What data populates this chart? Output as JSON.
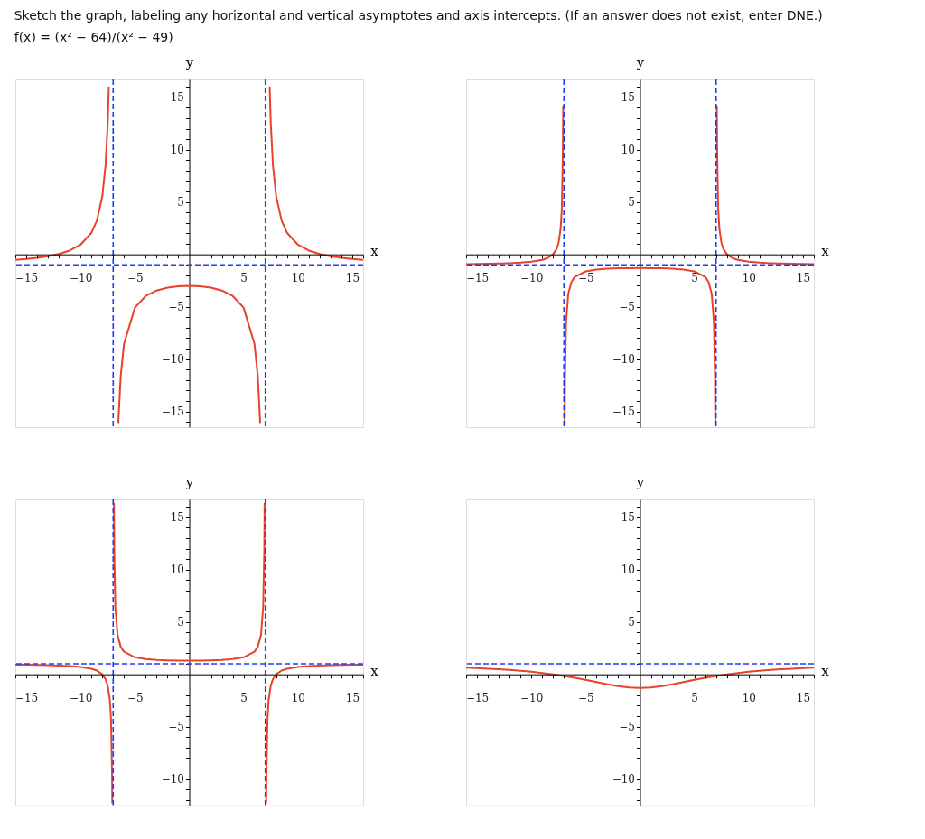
{
  "chart_data": [
    {
      "type": "line",
      "title": "Sketch the graph, labeling any horizontal and vertical asymptotes and axis intercepts. (If an answer does not exist, enter DNE.)",
      "subtitle": "f(x) = (x² − 64)/(x² − 49)",
      "xlabel": "x",
      "ylabel": "y",
      "series": [
        {
          "color": "#e8412c",
          "x": [
            -16,
            -15,
            -14,
            -13,
            -12,
            -11,
            -10,
            -9,
            -8.5,
            -8,
            -7.7,
            -7.5,
            -7.4,
            -7,
            -6.52,
            -6.5,
            -6.3,
            -6,
            -5,
            -4,
            -3,
            -2,
            -1,
            0,
            1,
            2,
            3,
            4,
            5,
            6,
            6.3,
            6.5,
            6.52,
            7,
            7.4,
            7.5,
            7.7,
            8,
            8.5,
            9,
            10,
            11,
            12,
            13,
            14,
            15,
            16
          ],
          "values": [
            -0.527,
            -0.443,
            -0.333,
            -0.183,
            0.032,
            0.361,
            0.922,
            2.063,
            3.215,
            5.533,
            8.524,
            12.517,
            16.01,
            null,
            -16.1,
            -15.519,
            -11.526,
            -8.538,
            -5.083,
            -3.97,
            -3.45,
            -3.178,
            -3.042,
            -3,
            -3.042,
            -3.178,
            -3.45,
            -3.97,
            -5.083,
            -8.538,
            -11.526,
            -15.519,
            -16.1,
            null,
            16.01,
            12.517,
            8.524,
            5.533,
            3.215,
            2.063,
            0.922,
            0.361,
            0.032,
            -0.183,
            -0.333,
            -0.443,
            -0.527
          ]
        }
      ],
      "xlim": [
        -16,
        16
      ],
      "ylim": [
        -16.5,
        16.7
      ],
      "xticks": [
        {
          "value": -16,
          "label": null
        },
        -15,
        {
          "value": -14,
          "label": null
        },
        {
          "value": -13,
          "label": null
        },
        {
          "value": -12,
          "label": null
        },
        {
          "value": -11,
          "label": null
        },
        -10,
        {
          "value": -9,
          "label": null
        },
        {
          "value": -8,
          "label": null
        },
        {
          "value": -7,
          "label": null
        },
        {
          "value": -6,
          "label": null
        },
        -5,
        {
          "value": -4,
          "label": null
        },
        {
          "value": -3,
          "label": null
        },
        {
          "value": -2,
          "label": null
        },
        {
          "value": -1,
          "label": null
        },
        {
          "value": 1,
          "label": null
        },
        {
          "value": 2,
          "label": null
        },
        {
          "value": 3,
          "label": null
        },
        {
          "value": 4,
          "label": null
        },
        5,
        {
          "value": 6,
          "label": null
        },
        {
          "value": 7,
          "label": null
        },
        {
          "value": 8,
          "label": null
        },
        {
          "value": 9,
          "label": null
        },
        10,
        {
          "value": 11,
          "label": null
        },
        {
          "value": 12,
          "label": null
        },
        {
          "value": 13,
          "label": null
        },
        {
          "value": 14,
          "label": null
        },
        15,
        {
          "value": 16,
          "label": null
        }
      ],
      "yticks": [
        {
          "value": -16,
          "label": null
        },
        -15,
        {
          "value": -14,
          "label": null
        },
        {
          "value": -13,
          "label": null
        },
        {
          "value": -12,
          "label": null
        },
        {
          "value": -11,
          "label": null
        },
        -10,
        {
          "value": -9,
          "label": null
        },
        {
          "value": -8,
          "label": null
        },
        {
          "value": -7,
          "label": null
        },
        {
          "value": -6,
          "label": null
        },
        -5,
        {
          "value": -4,
          "label": null
        },
        {
          "value": -3,
          "label": null
        },
        {
          "value": -2,
          "label": null
        },
        {
          "value": -1,
          "label": null
        },
        {
          "value": 1,
          "label": null
        },
        {
          "value": 2,
          "label": null
        },
        {
          "value": 3,
          "label": null
        },
        {
          "value": 4,
          "label": null
        },
        5,
        {
          "value": 6,
          "label": null
        },
        {
          "value": 7,
          "label": null
        },
        {
          "value": 8,
          "label": null
        },
        {
          "value": 9,
          "label": null
        },
        10,
        {
          "value": 11,
          "label": null
        },
        {
          "value": 12,
          "label": null
        },
        {
          "value": 13,
          "label": null
        },
        {
          "value": 14,
          "label": null
        },
        15,
        {
          "value": 16,
          "label": null
        }
      ],
      "ref_lines": [
        {
          "axis": "x",
          "value": -7,
          "color": "#1f3cf0",
          "line_style": "dashed"
        },
        {
          "axis": "x",
          "value": 7,
          "color": "#1f3cf0",
          "line_style": "dashed"
        },
        {
          "axis": "y",
          "value": -1,
          "color": "#1f3cf0",
          "line_style": "dashed"
        }
      ]
    },
    {
      "type": "line",
      "xlabel": "x",
      "ylabel": "y",
      "series": [
        {
          "color": "#e8412c",
          "x": [
            -16,
            -15,
            -14,
            -13,
            -12,
            -11,
            -10,
            -9,
            -8.5,
            -8,
            -7.7,
            -7.5,
            -7.3,
            -7.2,
            -7.1,
            -7.07,
            -7,
            -6.93,
            -6.9,
            -6.8,
            -6.6,
            -6.3,
            -6,
            -5,
            -4,
            -3,
            -2,
            -1,
            0,
            1,
            2,
            3,
            4,
            5,
            6,
            6.3,
            6.6,
            6.8,
            6.9,
            6.93,
            7,
            7.07,
            7.1,
            7.2,
            7.3,
            7.5,
            7.7,
            8,
            8.5,
            9,
            10,
            11,
            12,
            13,
            14,
            15,
            16
          ],
          "values": [
            -0.928,
            -0.915,
            -0.898,
            -0.875,
            -0.842,
            -0.792,
            -0.706,
            -0.531,
            -0.355,
            0,
            0.458,
            1.069,
            2.497,
            4.282,
            9.64,
            14.23,
            null,
            -16.38,
            -11.79,
            -6.435,
            -3.757,
            -2.611,
            -2.154,
            -1.625,
            -1.455,
            -1.375,
            -1.333,
            -1.3125,
            -1.306,
            -1.3125,
            -1.333,
            -1.375,
            -1.455,
            -1.625,
            -2.154,
            -2.611,
            -3.757,
            -6.435,
            -11.79,
            -16.38,
            null,
            14.23,
            9.64,
            4.282,
            2.497,
            1.069,
            0.458,
            0,
            -0.355,
            -0.531,
            -0.706,
            -0.792,
            -0.842,
            -0.875,
            -0.898,
            -0.915,
            -0.928
          ]
        }
      ],
      "xlim": [
        -16,
        16
      ],
      "ylim": [
        -16.5,
        16.7
      ],
      "xticks": [
        {
          "value": -16,
          "label": null
        },
        -15,
        {
          "value": -14,
          "label": null
        },
        {
          "value": -13,
          "label": null
        },
        {
          "value": -12,
          "label": null
        },
        {
          "value": -11,
          "label": null
        },
        -10,
        {
          "value": -9,
          "label": null
        },
        {
          "value": -8,
          "label": null
        },
        {
          "value": -7,
          "label": null
        },
        {
          "value": -6,
          "label": null
        },
        -5,
        {
          "value": -4,
          "label": null
        },
        {
          "value": -3,
          "label": null
        },
        {
          "value": -2,
          "label": null
        },
        {
          "value": -1,
          "label": null
        },
        {
          "value": 1,
          "label": null
        },
        {
          "value": 2,
          "label": null
        },
        {
          "value": 3,
          "label": null
        },
        {
          "value": 4,
          "label": null
        },
        5,
        {
          "value": 6,
          "label": null
        },
        {
          "value": 7,
          "label": null
        },
        {
          "value": 8,
          "label": null
        },
        {
          "value": 9,
          "label": null
        },
        10,
        {
          "value": 11,
          "label": null
        },
        {
          "value": 12,
          "label": null
        },
        {
          "value": 13,
          "label": null
        },
        {
          "value": 14,
          "label": null
        },
        15,
        {
          "value": 16,
          "label": null
        }
      ],
      "yticks": [
        {
          "value": -16,
          "label": null
        },
        -15,
        {
          "value": -14,
          "label": null
        },
        {
          "value": -13,
          "label": null
        },
        {
          "value": -12,
          "label": null
        },
        {
          "value": -11,
          "label": null
        },
        -10,
        {
          "value": -9,
          "label": null
        },
        {
          "value": -8,
          "label": null
        },
        {
          "value": -7,
          "label": null
        },
        {
          "value": -6,
          "label": null
        },
        -5,
        {
          "value": -4,
          "label": null
        },
        {
          "value": -3,
          "label": null
        },
        {
          "value": -2,
          "label": null
        },
        {
          "value": -1,
          "label": null
        },
        {
          "value": 1,
          "label": null
        },
        {
          "value": 2,
          "label": null
        },
        {
          "value": 3,
          "label": null
        },
        {
          "value": 4,
          "label": null
        },
        5,
        {
          "value": 6,
          "label": null
        },
        {
          "value": 7,
          "label": null
        },
        {
          "value": 8,
          "label": null
        },
        {
          "value": 9,
          "label": null
        },
        10,
        {
          "value": 11,
          "label": null
        },
        {
          "value": 12,
          "label": null
        },
        {
          "value": 13,
          "label": null
        },
        {
          "value": 14,
          "label": null
        },
        15,
        {
          "value": 16,
          "label": null
        }
      ],
      "ref_lines": [
        {
          "axis": "x",
          "value": -7,
          "color": "#1f3cf0",
          "line_style": "dashed"
        },
        {
          "axis": "x",
          "value": 7,
          "color": "#1f3cf0",
          "line_style": "dashed"
        },
        {
          "axis": "y",
          "value": -1,
          "color": "#1f3cf0",
          "line_style": "dashed"
        }
      ]
    },
    {
      "type": "line",
      "xlabel": "x",
      "ylabel": "y",
      "series": [
        {
          "color": "#e8412c",
          "x": [
            -16,
            -15,
            -14,
            -13,
            -12,
            -11,
            -10,
            -9,
            -8.5,
            -8,
            -7.7,
            -7.5,
            -7.3,
            -7.2,
            -7.1,
            -7.08,
            -7,
            -6.93,
            -6.9,
            -6.8,
            -6.6,
            -6.3,
            -6,
            -5,
            -4,
            -3,
            -2,
            -1,
            0,
            1,
            2,
            3,
            4,
            5,
            6,
            6.3,
            6.6,
            6.8,
            6.9,
            6.93,
            7,
            7.08,
            7.1,
            7.2,
            7.3,
            7.5,
            7.7,
            8,
            8.5,
            9,
            10,
            11,
            12,
            13,
            14,
            15,
            16
          ],
          "values": [
            0.928,
            0.915,
            0.898,
            0.875,
            0.842,
            0.792,
            0.706,
            0.531,
            0.355,
            0,
            -0.458,
            -1.069,
            -2.497,
            -4.282,
            -9.64,
            -12.32,
            null,
            16.38,
            11.79,
            6.435,
            3.757,
            2.611,
            2.154,
            1.625,
            1.455,
            1.375,
            1.333,
            1.3125,
            1.306,
            1.3125,
            1.333,
            1.375,
            1.455,
            1.625,
            2.154,
            2.611,
            3.757,
            6.435,
            11.79,
            16.38,
            null,
            -12.32,
            -9.64,
            -4.282,
            -2.497,
            -1.069,
            -0.458,
            0,
            0.355,
            0.531,
            0.706,
            0.792,
            0.842,
            0.875,
            0.898,
            0.915,
            0.928
          ]
        }
      ],
      "xlim": [
        -16,
        16
      ],
      "ylim": [
        -12.5,
        16.7
      ],
      "xticks": [
        {
          "value": -16,
          "label": null
        },
        -15,
        {
          "value": -14,
          "label": null
        },
        {
          "value": -13,
          "label": null
        },
        {
          "value": -12,
          "label": null
        },
        {
          "value": -11,
          "label": null
        },
        -10,
        {
          "value": -9,
          "label": null
        },
        {
          "value": -8,
          "label": null
        },
        {
          "value": -7,
          "label": null
        },
        {
          "value": -6,
          "label": null
        },
        -5,
        {
          "value": -4,
          "label": null
        },
        {
          "value": -3,
          "label": null
        },
        {
          "value": -2,
          "label": null
        },
        {
          "value": -1,
          "label": null
        },
        {
          "value": 1,
          "label": null
        },
        {
          "value": 2,
          "label": null
        },
        {
          "value": 3,
          "label": null
        },
        {
          "value": 4,
          "label": null
        },
        5,
        {
          "value": 6,
          "label": null
        },
        {
          "value": 7,
          "label": null
        },
        {
          "value": 8,
          "label": null
        },
        {
          "value": 9,
          "label": null
        },
        10,
        {
          "value": 11,
          "label": null
        },
        {
          "value": 12,
          "label": null
        },
        {
          "value": 13,
          "label": null
        },
        {
          "value": 14,
          "label": null
        },
        15,
        {
          "value": 16,
          "label": null
        }
      ],
      "yticks": [
        {
          "value": -12,
          "label": null
        },
        {
          "value": -11,
          "label": null
        },
        -10,
        {
          "value": -9,
          "label": null
        },
        {
          "value": -8,
          "label": null
        },
        {
          "value": -7,
          "label": null
        },
        {
          "value": -6,
          "label": null
        },
        -5,
        {
          "value": -4,
          "label": null
        },
        {
          "value": -3,
          "label": null
        },
        {
          "value": -2,
          "label": null
        },
        {
          "value": -1,
          "label": null
        },
        {
          "value": 1,
          "label": null
        },
        {
          "value": 2,
          "label": null
        },
        {
          "value": 3,
          "label": null
        },
        {
          "value": 4,
          "label": null
        },
        5,
        {
          "value": 6,
          "label": null
        },
        {
          "value": 7,
          "label": null
        },
        {
          "value": 8,
          "label": null
        },
        {
          "value": 9,
          "label": null
        },
        10,
        {
          "value": 11,
          "label": null
        },
        {
          "value": 12,
          "label": null
        },
        {
          "value": 13,
          "label": null
        },
        {
          "value": 14,
          "label": null
        },
        15,
        {
          "value": 16,
          "label": null
        }
      ],
      "ref_lines": [
        {
          "axis": "x",
          "value": -7,
          "color": "#1f3cf0",
          "line_style": "dashed"
        },
        {
          "axis": "x",
          "value": 7,
          "color": "#1f3cf0",
          "line_style": "dashed"
        },
        {
          "axis": "y",
          "value": 1,
          "color": "#1f3cf0",
          "line_style": "dashed"
        }
      ]
    },
    {
      "type": "line",
      "xlabel": "x",
      "ylabel": "y",
      "series": [
        {
          "color": "#e8412c",
          "x": [
            -16,
            -15,
            -14,
            -13,
            -12,
            -11,
            -10,
            -9,
            -8,
            -7,
            -6,
            -5,
            -4,
            -3,
            -2,
            -1,
            0,
            1,
            2,
            3,
            4,
            5,
            6,
            7,
            8,
            9,
            10,
            11,
            12,
            13,
            14,
            15,
            16
          ],
          "values": [
            0.63,
            0.588,
            0.539,
            0.482,
            0.415,
            0.335,
            0.242,
            0.131,
            0,
            -0.153,
            -0.329,
            -0.527,
            -0.738,
            -0.948,
            -1.132,
            -1.26,
            -1.306,
            -1.26,
            -1.132,
            -0.948,
            -0.738,
            -0.527,
            -0.329,
            -0.153,
            0,
            0.131,
            0.242,
            0.335,
            0.415,
            0.482,
            0.539,
            0.588,
            0.63
          ]
        }
      ],
      "xlim": [
        -16,
        16
      ],
      "ylim": [
        -12.5,
        16.7
      ],
      "xticks": [
        {
          "value": -16,
          "label": null
        },
        -15,
        {
          "value": -14,
          "label": null
        },
        {
          "value": -13,
          "label": null
        },
        {
          "value": -12,
          "label": null
        },
        {
          "value": -11,
          "label": null
        },
        -10,
        {
          "value": -9,
          "label": null
        },
        {
          "value": -8,
          "label": null
        },
        {
          "value": -7,
          "label": null
        },
        {
          "value": -6,
          "label": null
        },
        -5,
        {
          "value": -4,
          "label": null
        },
        {
          "value": -3,
          "label": null
        },
        {
          "value": -2,
          "label": null
        },
        {
          "value": -1,
          "label": null
        },
        {
          "value": 1,
          "label": null
        },
        {
          "value": 2,
          "label": null
        },
        {
          "value": 3,
          "label": null
        },
        {
          "value": 4,
          "label": null
        },
        5,
        {
          "value": 6,
          "label": null
        },
        {
          "value": 7,
          "label": null
        },
        {
          "value": 8,
          "label": null
        },
        {
          "value": 9,
          "label": null
        },
        10,
        {
          "value": 11,
          "label": null
        },
        {
          "value": 12,
          "label": null
        },
        {
          "value": 13,
          "label": null
        },
        {
          "value": 14,
          "label": null
        },
        15,
        {
          "value": 16,
          "label": null
        }
      ],
      "yticks": [
        {
          "value": -12,
          "label": null
        },
        {
          "value": -11,
          "label": null
        },
        -10,
        {
          "value": -9,
          "label": null
        },
        {
          "value": -8,
          "label": null
        },
        {
          "value": -7,
          "label": null
        },
        {
          "value": -6,
          "label": null
        },
        -5,
        {
          "value": -4,
          "label": null
        },
        {
          "value": -3,
          "label": null
        },
        {
          "value": -2,
          "label": null
        },
        {
          "value": -1,
          "label": null
        },
        {
          "value": 1,
          "label": null
        },
        {
          "value": 2,
          "label": null
        },
        {
          "value": 3,
          "label": null
        },
        {
          "value": 4,
          "label": null
        },
        5,
        {
          "value": 6,
          "label": null
        },
        {
          "value": 7,
          "label": null
        },
        {
          "value": 8,
          "label": null
        },
        {
          "value": 9,
          "label": null
        },
        10,
        {
          "value": 11,
          "label": null
        },
        {
          "value": 12,
          "label": null
        },
        {
          "value": 13,
          "label": null
        },
        {
          "value": 14,
          "label": null
        },
        15,
        {
          "value": 16,
          "label": null
        }
      ],
      "ref_lines": [
        {
          "axis": "y",
          "value": 1,
          "color": "#1f3cf0",
          "line_style": "dashed"
        }
      ]
    }
  ]
}
